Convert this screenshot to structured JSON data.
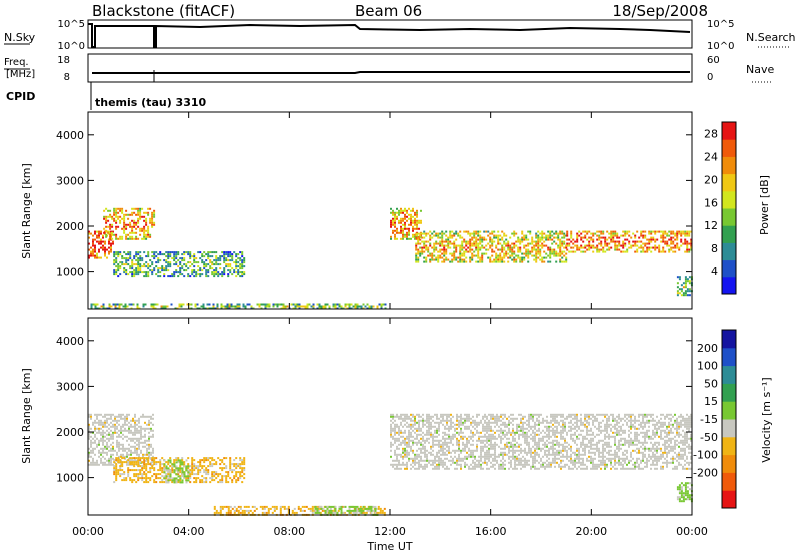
{
  "header": {
    "station": "Blackstone (fitACF)",
    "beam": "Beam 06",
    "date": "18/Sep/2008"
  },
  "panels": {
    "nsky": {
      "label": "N.Sky",
      "right_label": "N.Search",
      "left_ticks": [
        "10^5",
        "10^0"
      ],
      "right_ticks": [
        "10^5",
        "10^0"
      ]
    },
    "freq": {
      "label_line1": "Freq.",
      "label_line2": "[MHz]",
      "right_label": "Nave",
      "left_ticks": [
        "18",
        "8"
      ],
      "right_ticks": [
        "60",
        "0"
      ]
    },
    "cpid": {
      "label": "CPID",
      "program": "themis (tau) 3310"
    }
  },
  "chart_data": [
    {
      "type": "heatmap",
      "title": "",
      "xlabel": "Time UT",
      "ylabel": "Slant Range [km]",
      "x_ticks": [
        "00:00",
        "04:00",
        "08:00",
        "12:00",
        "16:00",
        "20:00",
        "00:00"
      ],
      "xlim_hours": [
        0,
        24
      ],
      "y_ticks": [
        1000,
        2000,
        3000,
        4000
      ],
      "ylim": [
        180,
        4500
      ],
      "colorbar": {
        "label": "Power [dB]",
        "ticks": [
          "4",
          "8",
          "12",
          "16",
          "20",
          "24",
          "28"
        ],
        "range": [
          0,
          30
        ],
        "colors": [
          "#1414f0",
          "#1e50c8",
          "#2d8c96",
          "#32a050",
          "#78c832",
          "#d2e61e",
          "#f0c814",
          "#f08c0a",
          "#f05a0a",
          "#e61414"
        ]
      },
      "regions": [
        {
          "t": [
            0.0,
            1.0
          ],
          "r": [
            1300,
            1900
          ],
          "level": 0.75
        },
        {
          "t": [
            0.6,
            2.6
          ],
          "r": [
            1700,
            2400
          ],
          "level": 0.6
        },
        {
          "t": [
            1.0,
            6.2
          ],
          "r": [
            900,
            1450
          ],
          "level": 0.25
        },
        {
          "t": [
            0.1,
            11.8
          ],
          "r": [
            200,
            300
          ],
          "level": 0.3
        },
        {
          "t": [
            12.0,
            13.2
          ],
          "r": [
            1700,
            2400
          ],
          "level": 0.6
        },
        {
          "t": [
            13.0,
            19.0
          ],
          "r": [
            1200,
            1900
          ],
          "level": 0.5
        },
        {
          "t": [
            19.0,
            24.0
          ],
          "r": [
            1450,
            1900
          ],
          "level": 0.65
        },
        {
          "t": [
            23.4,
            24.0
          ],
          "r": [
            500,
            900
          ],
          "level": 0.3
        }
      ]
    },
    {
      "type": "heatmap",
      "title": "",
      "xlabel": "Time UT",
      "ylabel": "Slant Range [km]",
      "x_ticks": [
        "00:00",
        "04:00",
        "08:00",
        "12:00",
        "16:00",
        "20:00",
        "00:00"
      ],
      "xlim_hours": [
        0,
        24
      ],
      "y_ticks": [
        1000,
        2000,
        3000,
        4000
      ],
      "ylim": [
        180,
        4500
      ],
      "colorbar": {
        "label": "Velocity [m s⁻¹]",
        "ticks": [
          "200",
          "100",
          "50",
          "15",
          "-15",
          "-50",
          "-100",
          "-200"
        ],
        "range": [
          -250,
          250
        ],
        "colors": [
          "#e61414",
          "#f05a0a",
          "#f08c0a",
          "#f0b414",
          "#c8c8c0",
          "#78c832",
          "#32a050",
          "#2d8c96",
          "#1e50c8",
          "#1414a0"
        ]
      },
      "regions": [
        {
          "t": [
            0.0,
            2.6
          ],
          "r": [
            1300,
            2400
          ],
          "kind": "gray"
        },
        {
          "t": [
            1.0,
            6.2
          ],
          "r": [
            900,
            1450
          ],
          "kind": "orange"
        },
        {
          "t": [
            3.0,
            4.0
          ],
          "r": [
            900,
            1400
          ],
          "kind": "green"
        },
        {
          "t": [
            5.0,
            11.8
          ],
          "r": [
            200,
            380
          ],
          "kind": "orange"
        },
        {
          "t": [
            9.0,
            11.5
          ],
          "r": [
            200,
            380
          ],
          "kind": "green"
        },
        {
          "t": [
            12.0,
            24.0
          ],
          "r": [
            1200,
            2400
          ],
          "kind": "gray"
        },
        {
          "t": [
            23.4,
            24.0
          ],
          "r": [
            500,
            900
          ],
          "kind": "green"
        }
      ]
    }
  ]
}
